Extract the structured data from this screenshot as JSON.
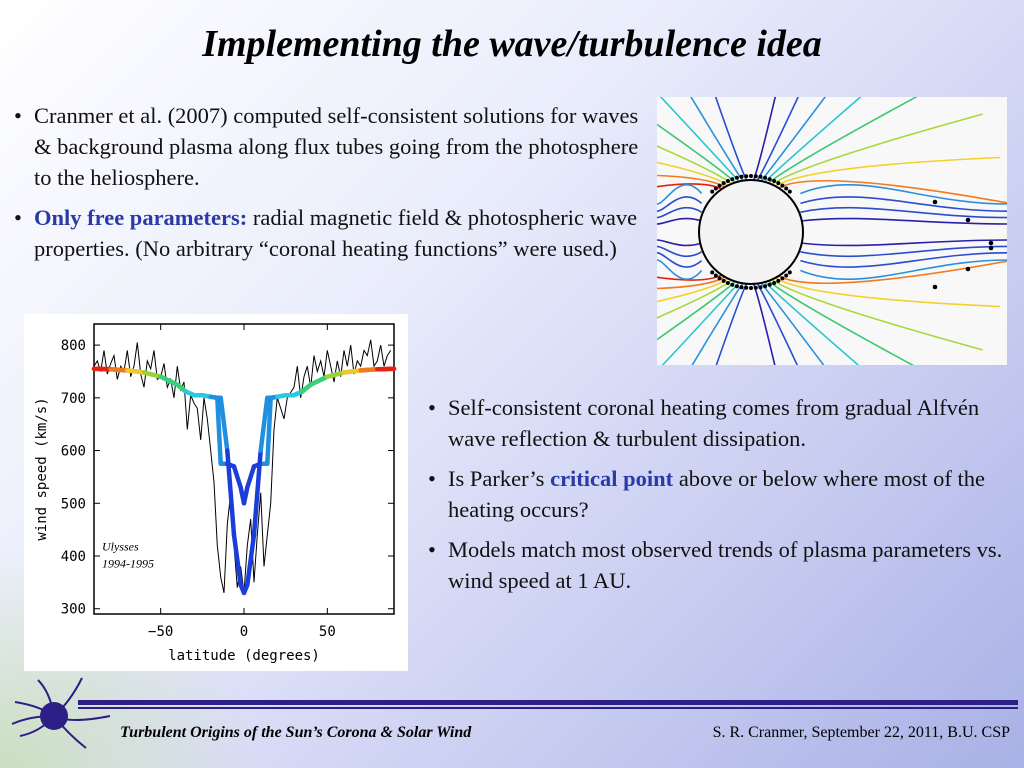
{
  "title": "Implementing the wave/turbulence idea",
  "top_bullets": [
    {
      "text": "Cranmer et al. (2007) computed self-consistent solutions for waves & background plasma along flux tubes going from the photosphere to the heliosphere."
    },
    {
      "highlight": "Only free parameters:",
      "text": "  radial magnetic field & photospheric wave properties. (No arbitrary “coronal heating functions” were used.)"
    }
  ],
  "right_bullets": [
    {
      "pre": "Self-consistent coronal heating comes from gradual Alfvén wave reflection & turbulent dissipation.",
      "highlight": "",
      "post": ""
    },
    {
      "pre": "Is Parker’s ",
      "highlight": "critical point",
      "post": " above or below where most of the heating occurs?"
    },
    {
      "pre": "Models match most observed trends of plasma parameters vs. wind speed at 1 AU.",
      "highlight": "",
      "post": ""
    }
  ],
  "footer": {
    "left": "Turbulent Origins of the Sun’s Corona & Solar Wind",
    "right": "S. R. Cranmer, September 22, 2011, B.U. CSP"
  },
  "chart_data": {
    "type": "line",
    "xlabel": "latitude (degrees)",
    "ylabel": "wind speed (km/s)",
    "xlim": [
      -90,
      90
    ],
    "ylim": [
      290,
      840
    ],
    "xticks": [
      -50,
      0,
      50
    ],
    "xtick_labels": [
      "−50",
      "0",
      "50"
    ],
    "yticks": [
      300,
      400,
      500,
      600,
      700,
      800
    ],
    "annotation": [
      "Ulysses",
      "1994-1995"
    ],
    "series": [
      {
        "style": "black-thin",
        "x": [
          -90,
          -88,
          -86,
          -84,
          -82,
          -80,
          -78,
          -76,
          -74,
          -72,
          -70,
          -68,
          -66,
          -64,
          -62,
          -60,
          -58,
          -56,
          -54,
          -52,
          -50,
          -48,
          -46,
          -44,
          -42,
          -40,
          -38,
          -36,
          -34,
          -32,
          -30,
          -28,
          -26,
          -24,
          -22,
          -20,
          -18,
          -16,
          -14,
          -12,
          -10,
          -8,
          -6,
          -4,
          -2,
          0,
          2,
          4,
          6,
          8,
          10,
          12,
          14,
          16,
          18,
          20,
          22,
          24,
          26,
          28,
          30,
          32,
          34,
          36,
          38,
          40,
          42,
          44,
          46,
          48,
          50,
          52,
          54,
          56,
          58,
          60,
          62,
          64,
          66,
          68,
          70,
          72,
          74,
          76,
          78,
          80,
          82,
          84,
          86,
          88
        ],
        "y": [
          760,
          770,
          750,
          790,
          745,
          765,
          780,
          735,
          760,
          750,
          790,
          740,
          760,
          805,
          745,
          720,
          770,
          755,
          790,
          735,
          740,
          765,
          720,
          735,
          700,
          760,
          715,
          730,
          640,
          705,
          690,
          680,
          620,
          700,
          660,
          600,
          540,
          420,
          360,
          330,
          460,
          520,
          420,
          340,
          380,
          330,
          420,
          470,
          350,
          440,
          520,
          380,
          440,
          500,
          640,
          700,
          680,
          660,
          700,
          710,
          720,
          760,
          700,
          740,
          760,
          720,
          780,
          750,
          770,
          740,
          790,
          760,
          730,
          770,
          740,
          790,
          760,
          800,
          745,
          770,
          760,
          790,
          780,
          810,
          760,
          770,
          800,
          760,
          780,
          790
        ]
      },
      {
        "style": "model-thick",
        "x": [
          -90,
          -80,
          -70,
          -60,
          -50,
          -40,
          -35,
          -30,
          -25,
          -20,
          -16,
          -14,
          -10,
          -6,
          -2,
          0,
          2,
          6,
          10,
          14,
          16,
          20,
          25,
          30,
          35,
          40,
          50,
          60,
          70,
          80,
          90
        ],
        "y": [
          755,
          754,
          752,
          748,
          740,
          725,
          712,
          705,
          705,
          702,
          700,
          575,
          575,
          570,
          530,
          500,
          530,
          570,
          575,
          575,
          700,
          702,
          705,
          705,
          712,
          725,
          740,
          748,
          752,
          754,
          755
        ]
      },
      {
        "style": "model-thick",
        "x": [
          -90,
          -80,
          -70,
          -60,
          -50,
          -40,
          -35,
          -30,
          -25,
          -20,
          -16,
          -14,
          -10,
          -6,
          -2,
          0,
          2,
          6,
          10,
          14,
          16,
          20,
          25,
          30,
          35,
          40,
          50,
          60,
          70,
          80,
          90
        ],
        "y": [
          755,
          754,
          752,
          748,
          740,
          725,
          712,
          705,
          705,
          702,
          700,
          700,
          600,
          440,
          345,
          330,
          345,
          440,
          600,
          700,
          700,
          702,
          705,
          705,
          712,
          725,
          740,
          748,
          752,
          754,
          755
        ]
      }
    ]
  },
  "flux_tube_diagram": {
    "note_labels": []
  }
}
